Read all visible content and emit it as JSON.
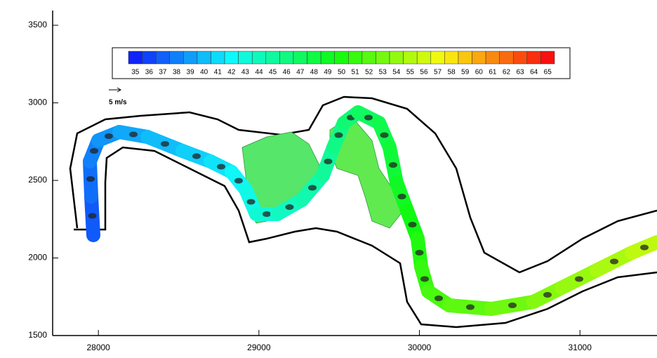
{
  "chart_data": {
    "type": "contour-map",
    "xlim": [
      27715,
      31480
    ],
    "xticks": [
      28000,
      29000,
      30000,
      31000
    ],
    "ylim": [
      1500,
      3595
    ],
    "yticks": [
      1500,
      2000,
      2500,
      3000,
      3500
    ],
    "levels": [
      35,
      36,
      37,
      38,
      39,
      40,
      41,
      42,
      43,
      44,
      45,
      46,
      47,
      48,
      49,
      50,
      51,
      52,
      53,
      54,
      55,
      56,
      57,
      58,
      59,
      60,
      61,
      62,
      63,
      64,
      65
    ],
    "vector_scale_label": "5 m/s"
  }
}
